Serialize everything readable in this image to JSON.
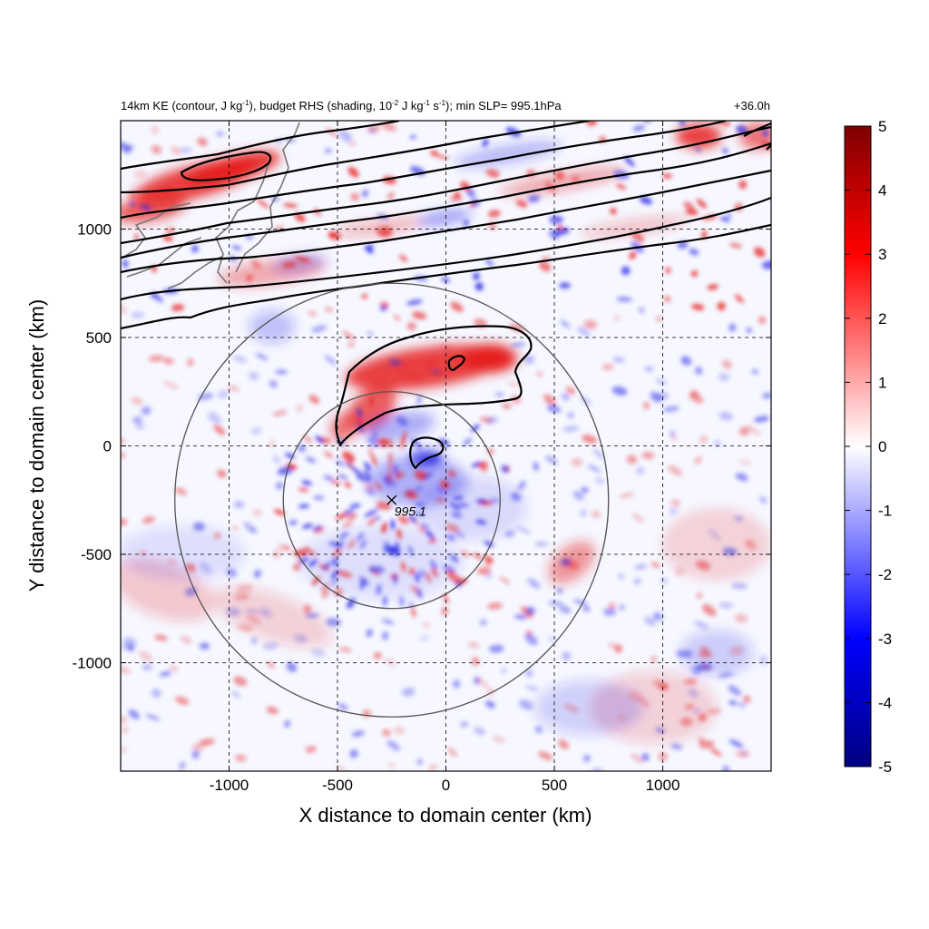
{
  "chart_data": {
    "type": "heatmap",
    "title": {
      "p1": "14km KE (contour, J kg",
      "sup1": "-1",
      "p2": "), budget RHS (shading, 10",
      "sup2": "-2",
      "p3": " J kg",
      "sup3": "-1",
      "p4": " s",
      "sup4": "-1",
      "p5": "); min SLP= 995.1hPa"
    },
    "time_label": "+36.0h",
    "xlabel": "X distance to domain center (km)",
    "ylabel": "Y distance to domain center (km)",
    "xlim": [
      -1500,
      1500
    ],
    "ylim": [
      -1500,
      1500
    ],
    "xticks": [
      -1000,
      -500,
      0,
      500,
      1000
    ],
    "yticks": [
      -1000,
      -500,
      0,
      500,
      1000
    ],
    "grid": true,
    "colorbar": {
      "range": [
        -5,
        5
      ],
      "ticks": [
        5,
        4,
        3,
        2,
        1,
        0,
        -1,
        -2,
        -3,
        -4,
        -5
      ],
      "colormap": [
        "#000080",
        "#0000ff",
        "#8080ff",
        "#ffffff",
        "#ff8080",
        "#ff0000",
        "#800000"
      ]
    },
    "storm_center": {
      "x": -250,
      "y": -250,
      "label": "995.1"
    },
    "range_rings_km": [
      500,
      1000
    ],
    "colors": {
      "ring": "#555555",
      "coast": "#777777",
      "contour": "#000000"
    }
  }
}
